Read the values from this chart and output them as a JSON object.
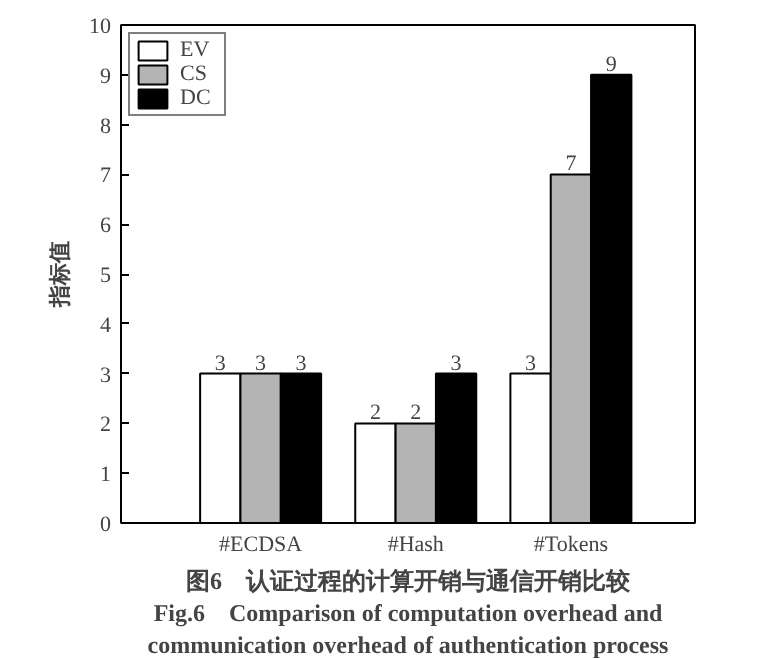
{
  "chart_data": {
    "type": "bar",
    "categories": [
      "#ECDSA",
      "#Hash",
      "#Tokens"
    ],
    "series": [
      {
        "name": "EV",
        "color": "#ffffff",
        "values": [
          3,
          2,
          3
        ]
      },
      {
        "name": "CS",
        "color": "#b4b4b4",
        "values": [
          3,
          2,
          7
        ]
      },
      {
        "name": "DC",
        "color": "#000000",
        "values": [
          3,
          3,
          9
        ]
      }
    ],
    "ylabel": "指标值",
    "ylim": [
      0,
      10
    ],
    "yticks": [
      0,
      1,
      2,
      3,
      4,
      5,
      6,
      7,
      8,
      9,
      10
    ],
    "grid": false,
    "legend": "top left",
    "data_labels": true,
    "annotations": [
      "图6　认证过程的计算开销与通信开销比较",
      "Fig.6　Comparison of computation overhead and",
      "communication overhead of authentication process"
    ]
  }
}
